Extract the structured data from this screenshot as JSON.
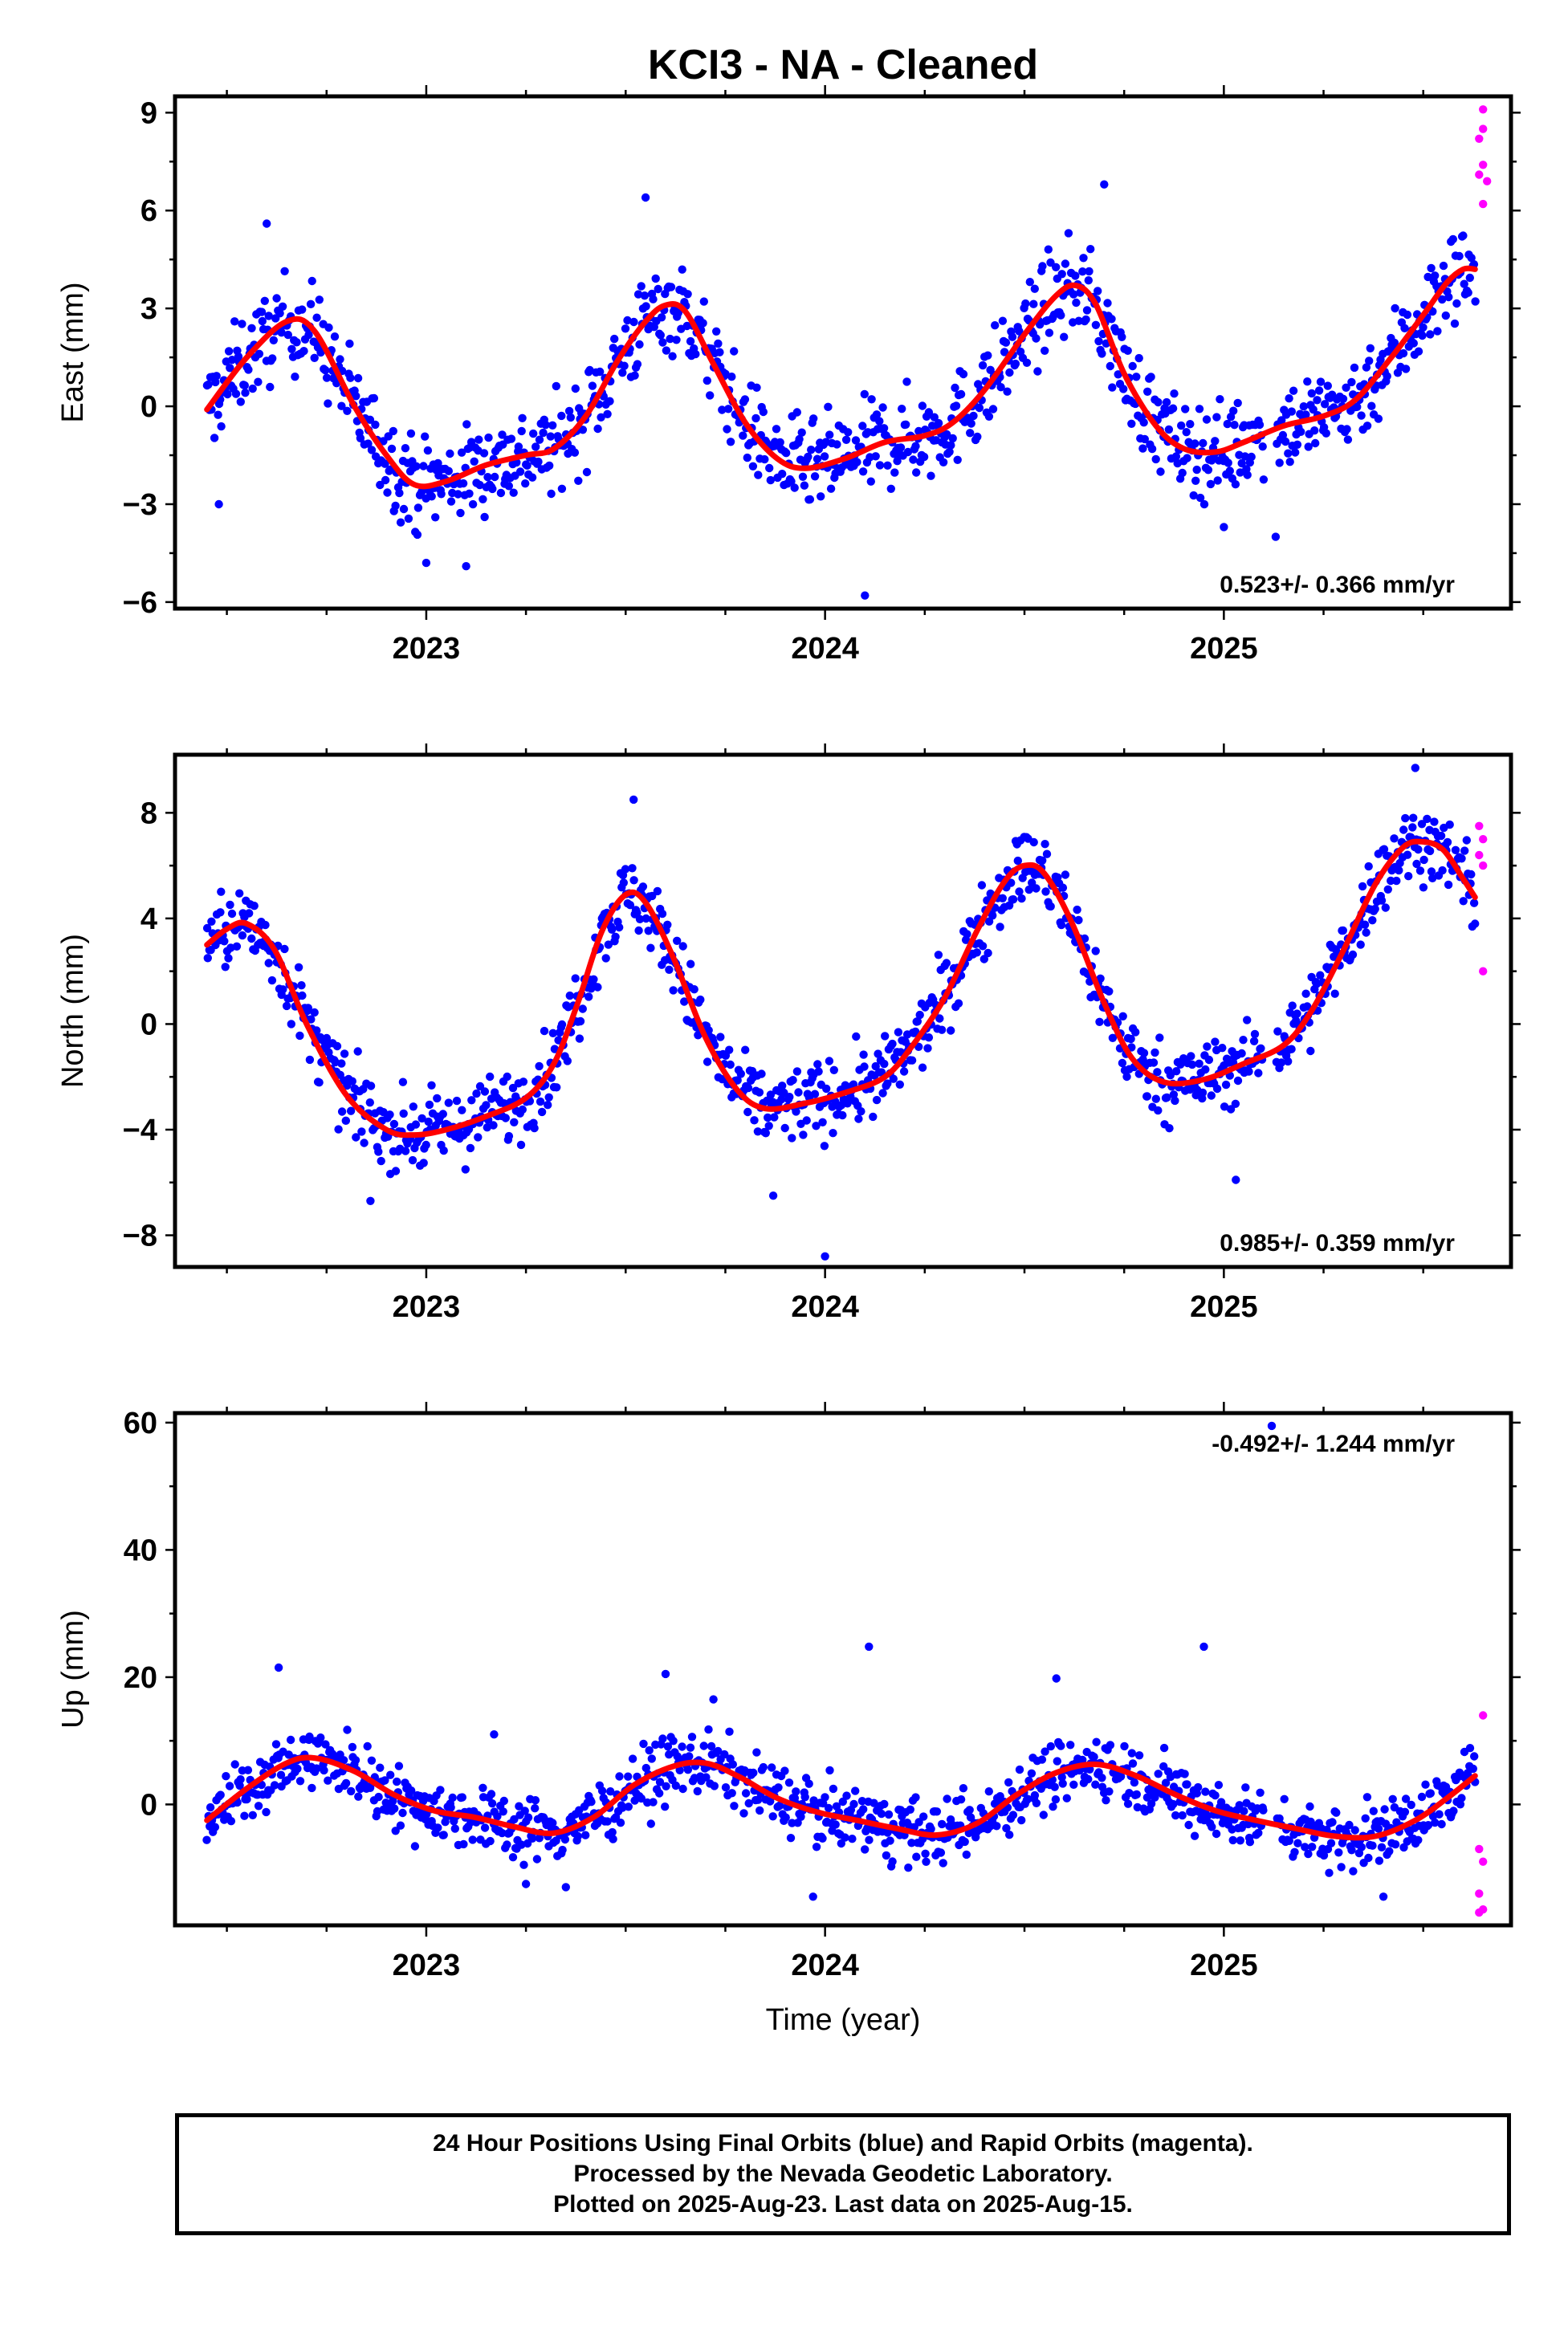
{
  "title": "KCI3  - NA - Cleaned",
  "colors": {
    "final": "#0000ff",
    "rapid": "#ff00ff",
    "fit": "#ff0000"
  },
  "footer": {
    "line1": "24 Hour Positions Using Final Orbits (blue) and Rapid Orbits (magenta).",
    "line2": "Processed by the Nevada Geodetic Laboratory.",
    "line3": "Plotted on 2025-Aug-23. Last data on 2025-Aug-15."
  },
  "chart_data": [
    {
      "type": "scatter",
      "ylabel": "East (mm)",
      "xlim": [
        2022.37,
        2025.72
      ],
      "ylim": [
        -6.2,
        9.5
      ],
      "yticks": [
        -6,
        -3,
        0,
        3,
        6,
        9
      ],
      "yticklabels": [
        "−6",
        "−3",
        "0",
        "3",
        "6",
        "9"
      ],
      "xticks": [
        2023,
        2024,
        2025
      ],
      "xticklabels": [
        "2023",
        "2024",
        "2025"
      ],
      "rate": "0.523+/- 0.366 mm/yr",
      "noise": 1.0,
      "fit": [
        [
          2022.45,
          -0.1
        ],
        [
          2022.55,
          1.5
        ],
        [
          2022.65,
          2.6
        ],
        [
          2022.72,
          2.3
        ],
        [
          2022.82,
          0.0
        ],
        [
          2022.9,
          -1.5
        ],
        [
          2022.97,
          -2.4
        ],
        [
          2023.05,
          -2.3
        ],
        [
          2023.15,
          -1.8
        ],
        [
          2023.25,
          -1.5
        ],
        [
          2023.32,
          -1.3
        ],
        [
          2023.4,
          -0.3
        ],
        [
          2023.48,
          1.4
        ],
        [
          2023.55,
          2.6
        ],
        [
          2023.6,
          3.1
        ],
        [
          2023.65,
          2.9
        ],
        [
          2023.72,
          1.3
        ],
        [
          2023.8,
          -0.5
        ],
        [
          2023.88,
          -1.6
        ],
        [
          2023.95,
          -1.9
        ],
        [
          2024.05,
          -1.6
        ],
        [
          2024.15,
          -1.1
        ],
        [
          2024.25,
          -0.9
        ],
        [
          2024.32,
          -0.5
        ],
        [
          2024.4,
          0.5
        ],
        [
          2024.5,
          2.2
        ],
        [
          2024.58,
          3.4
        ],
        [
          2024.63,
          3.7
        ],
        [
          2024.68,
          3.1
        ],
        [
          2024.75,
          1.0
        ],
        [
          2024.83,
          -0.6
        ],
        [
          2024.9,
          -1.3
        ],
        [
          2024.98,
          -1.4
        ],
        [
          2025.05,
          -1.1
        ],
        [
          2025.15,
          -0.6
        ],
        [
          2025.25,
          -0.3
        ],
        [
          2025.33,
          0.2
        ],
        [
          2025.42,
          1.5
        ],
        [
          2025.5,
          2.8
        ],
        [
          2025.56,
          3.8
        ],
        [
          2025.6,
          4.2
        ],
        [
          2025.63,
          4.2
        ]
      ],
      "outliers_final": [
        [
          2022.6,
          5.6
        ],
        [
          2023.0,
          -4.8
        ],
        [
          2023.1,
          -4.9
        ],
        [
          2024.1,
          -5.8
        ],
        [
          2024.7,
          6.8
        ],
        [
          2025.0,
          -3.7
        ],
        [
          2025.13,
          -4.0
        ],
        [
          2023.55,
          6.4
        ],
        [
          2022.48,
          -3.0
        ]
      ],
      "rapid": [
        [
          2025.65,
          9.1
        ],
        [
          2025.65,
          8.5
        ],
        [
          2025.64,
          8.2
        ],
        [
          2025.65,
          7.4
        ],
        [
          2025.64,
          7.1
        ],
        [
          2025.66,
          6.9
        ],
        [
          2025.65,
          6.2
        ]
      ]
    },
    {
      "type": "scatter",
      "ylabel": "North (mm)",
      "xlim": [
        2022.37,
        2025.72
      ],
      "ylim": [
        -9.2,
        10.2
      ],
      "yticks": [
        -8,
        -4,
        0,
        4,
        8
      ],
      "yticklabels": [
        "−8",
        "−4",
        "0",
        "4",
        "8"
      ],
      "xticks": [
        2023,
        2024,
        2025
      ],
      "xticklabels": [
        "2023",
        "2024",
        "2025"
      ],
      "rate": "0.985+/- 0.359 mm/yr",
      "noise": 1.0,
      "fit": [
        [
          2022.45,
          3.0
        ],
        [
          2022.5,
          3.6
        ],
        [
          2022.55,
          3.8
        ],
        [
          2022.62,
          2.8
        ],
        [
          2022.7,
          0.0
        ],
        [
          2022.8,
          -2.7
        ],
        [
          2022.9,
          -4.0
        ],
        [
          2022.97,
          -4.2
        ],
        [
          2023.05,
          -4.0
        ],
        [
          2023.15,
          -3.5
        ],
        [
          2023.25,
          -2.8
        ],
        [
          2023.32,
          -1.5
        ],
        [
          2023.38,
          0.8
        ],
        [
          2023.44,
          3.5
        ],
        [
          2023.5,
          4.9
        ],
        [
          2023.55,
          4.6
        ],
        [
          2023.62,
          2.5
        ],
        [
          2023.7,
          -0.5
        ],
        [
          2023.78,
          -2.5
        ],
        [
          2023.85,
          -3.2
        ],
        [
          2023.95,
          -3.0
        ],
        [
          2024.05,
          -2.6
        ],
        [
          2024.15,
          -2.0
        ],
        [
          2024.22,
          -0.8
        ],
        [
          2024.3,
          1.0
        ],
        [
          2024.38,
          3.5
        ],
        [
          2024.45,
          5.4
        ],
        [
          2024.5,
          6.0
        ],
        [
          2024.55,
          5.7
        ],
        [
          2024.62,
          3.8
        ],
        [
          2024.7,
          0.8
        ],
        [
          2024.77,
          -1.3
        ],
        [
          2024.85,
          -2.2
        ],
        [
          2024.95,
          -2.1
        ],
        [
          2025.05,
          -1.5
        ],
        [
          2025.15,
          -0.8
        ],
        [
          2025.22,
          0.5
        ],
        [
          2025.3,
          2.8
        ],
        [
          2025.38,
          5.3
        ],
        [
          2025.45,
          6.7
        ],
        [
          2025.5,
          6.9
        ],
        [
          2025.55,
          6.6
        ],
        [
          2025.6,
          5.5
        ],
        [
          2025.63,
          4.8
        ]
      ],
      "outliers_final": [
        [
          2022.86,
          -6.7
        ],
        [
          2023.52,
          8.5
        ],
        [
          2024.0,
          -8.8
        ],
        [
          2025.03,
          -5.9
        ],
        [
          2025.48,
          9.7
        ],
        [
          2023.87,
          -6.5
        ]
      ],
      "rapid": [
        [
          2025.64,
          7.5
        ],
        [
          2025.65,
          7.0
        ],
        [
          2025.64,
          6.4
        ],
        [
          2025.65,
          6.0
        ],
        [
          2025.65,
          2.0
        ]
      ]
    },
    {
      "type": "scatter",
      "ylabel": "Up (mm)",
      "xlabel": "Time (year)",
      "xlim": [
        2022.37,
        2025.72
      ],
      "ylim": [
        -19,
        61.5
      ],
      "yticks": [
        0,
        20,
        40,
        60
      ],
      "yticklabels": [
        "0",
        "20",
        "40",
        "60"
      ],
      "xticks": [
        2023,
        2024,
        2025
      ],
      "xticklabels": [
        "2023",
        "2024",
        "2025"
      ],
      "rate": "-0.492+/- 1.244 mm/yr",
      "noise": 3.5,
      "fit": [
        [
          2022.45,
          -2.5
        ],
        [
          2022.55,
          2.5
        ],
        [
          2022.65,
          6.5
        ],
        [
          2022.72,
          7.3
        ],
        [
          2022.82,
          5.2
        ],
        [
          2022.92,
          1.5
        ],
        [
          2023.02,
          -1.0
        ],
        [
          2023.12,
          -2.0
        ],
        [
          2023.22,
          -3.5
        ],
        [
          2023.32,
          -4.5
        ],
        [
          2023.42,
          -2.0
        ],
        [
          2023.52,
          3.0
        ],
        [
          2023.62,
          6.0
        ],
        [
          2023.7,
          6.5
        ],
        [
          2023.78,
          4.5
        ],
        [
          2023.88,
          1.0
        ],
        [
          2023.98,
          -1.2
        ],
        [
          2024.08,
          -2.5
        ],
        [
          2024.18,
          -3.8
        ],
        [
          2024.28,
          -4.8
        ],
        [
          2024.38,
          -3.0
        ],
        [
          2024.48,
          1.5
        ],
        [
          2024.58,
          5.0
        ],
        [
          2024.68,
          6.3
        ],
        [
          2024.78,
          4.5
        ],
        [
          2024.88,
          1.5
        ],
        [
          2024.98,
          -1.0
        ],
        [
          2025.08,
          -2.5
        ],
        [
          2025.18,
          -3.8
        ],
        [
          2025.28,
          -5.0
        ],
        [
          2025.38,
          -5.0
        ],
        [
          2025.48,
          -2.5
        ],
        [
          2025.56,
          1.0
        ],
        [
          2025.63,
          4.5
        ]
      ],
      "outliers_final": [
        [
          2022.63,
          21.5
        ],
        [
          2023.6,
          20.5
        ],
        [
          2024.11,
          24.8
        ],
        [
          2024.58,
          19.8
        ],
        [
          2024.95,
          24.8
        ],
        [
          2025.12,
          59.5
        ],
        [
          2023.25,
          -12.5
        ],
        [
          2023.35,
          -13.0
        ],
        [
          2023.97,
          -14.5
        ],
        [
          2025.4,
          -14.5
        ],
        [
          2023.17,
          11.0
        ],
        [
          2023.72,
          16.5
        ]
      ],
      "rapid": [
        [
          2025.65,
          14.0
        ],
        [
          2025.64,
          -7.0
        ],
        [
          2025.65,
          -9.0
        ],
        [
          2025.64,
          -14.0
        ],
        [
          2025.65,
          -16.5
        ],
        [
          2025.64,
          -17.0
        ]
      ]
    }
  ]
}
